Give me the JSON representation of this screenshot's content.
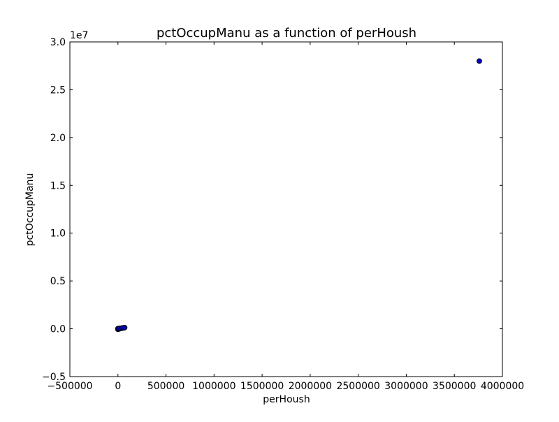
{
  "chart_data": {
    "type": "scatter",
    "title": "pctOccupManu as a function of perHoush",
    "xlabel": "perHoush",
    "ylabel": "pctOccupManu",
    "y_offset_label": "1e7",
    "xlim": [
      -500000,
      4000000
    ],
    "ylim": [
      -5000000,
      30000000
    ],
    "x_ticks": [
      -500000,
      0,
      500000,
      1000000,
      1500000,
      2000000,
      2500000,
      3000000,
      3500000,
      4000000
    ],
    "x_tick_labels": [
      "−500000",
      "0",
      "500000",
      "1000000",
      "1500000",
      "2000000",
      "2500000",
      "3000000",
      "3500000",
      "4000000"
    ],
    "y_ticks": [
      -5000000,
      0,
      5000000,
      10000000,
      15000000,
      20000000,
      25000000,
      30000000
    ],
    "y_tick_labels": [
      "−0.5",
      "0.0",
      "0.5",
      "1.0",
      "1.5",
      "2.0",
      "2.5",
      "3.0"
    ],
    "grid": false,
    "legend": "none",
    "marker_color": "#0000bf",
    "marker_edge": "#000000",
    "series": [
      {
        "x": [
          0,
          5000,
          10000,
          15000,
          20000,
          30000,
          40000,
          50000,
          60000,
          70000,
          0,
          10000,
          25000,
          45000,
          65000,
          3760000
        ],
        "y": [
          -60000,
          -30000,
          -10000,
          0,
          20000,
          40000,
          60000,
          80000,
          100000,
          120000,
          20000,
          30000,
          50000,
          90000,
          110000,
          28000000
        ]
      }
    ]
  }
}
